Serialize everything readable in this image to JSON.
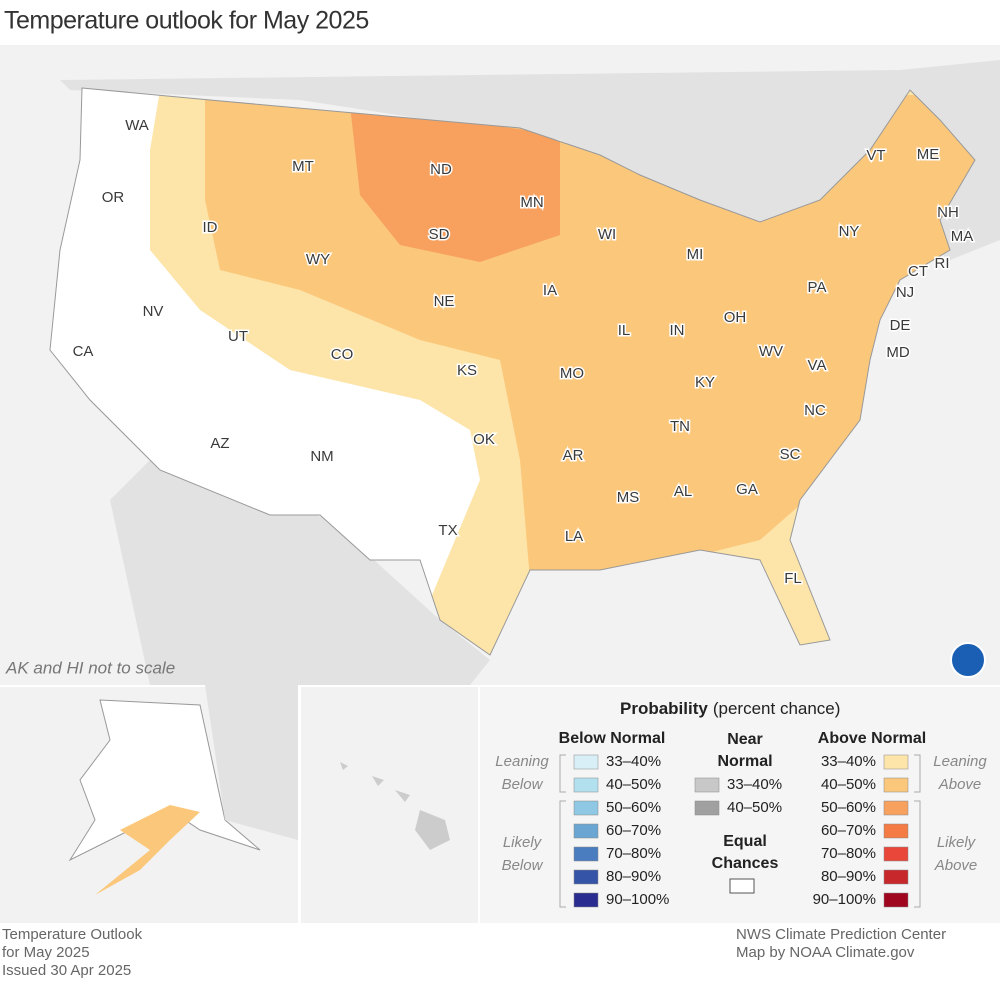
{
  "title": "Temperature outlook for May 2025",
  "map": {
    "note": "AK and HI not to scale",
    "states": [
      "WA",
      "OR",
      "CA",
      "NV",
      "ID",
      "MT",
      "WY",
      "UT",
      "CO",
      "AZ",
      "NM",
      "ND",
      "SD",
      "NE",
      "KS",
      "OK",
      "TX",
      "MN",
      "IA",
      "MO",
      "AR",
      "LA",
      "WI",
      "IL",
      "MI",
      "IN",
      "OH",
      "KY",
      "TN",
      "MS",
      "AL",
      "GA",
      "FL",
      "SC",
      "NC",
      "VA",
      "WV",
      "PA",
      "NY",
      "VT",
      "ME",
      "NH",
      "MA",
      "RI",
      "CT",
      "NJ",
      "DE",
      "MD"
    ],
    "insets": [
      "AK",
      "HI"
    ]
  },
  "legend": {
    "title": "Probability",
    "subtitle": "(percent chance)",
    "below": {
      "header": "Below Normal",
      "leaning": [
        "Leaning",
        "Below"
      ],
      "likely": [
        "Likely",
        "Below"
      ],
      "items": [
        {
          "label": "33–40%",
          "color": "#d9eff8"
        },
        {
          "label": "40–50%",
          "color": "#b3e0ef"
        },
        {
          "label": "50–60%",
          "color": "#8ec8e5"
        },
        {
          "label": "60–70%",
          "color": "#6ba6d3"
        },
        {
          "label": "70–80%",
          "color": "#4a7dc0"
        },
        {
          "label": "80–90%",
          "color": "#3554a7"
        },
        {
          "label": "90–100%",
          "color": "#2b2c8f"
        }
      ]
    },
    "near": {
      "header": [
        "Near",
        "Normal"
      ],
      "items": [
        {
          "label": "33–40%",
          "color": "#c8c8c8"
        },
        {
          "label": "40–50%",
          "color": "#a0a0a0"
        }
      ],
      "equal": [
        "Equal",
        "Chances"
      ],
      "equal_color": "#ffffff"
    },
    "above": {
      "header": "Above Normal",
      "leaning": [
        "Leaning",
        "Above"
      ],
      "likely": [
        "Likely",
        "Above"
      ],
      "items": [
        {
          "label": "33–40%",
          "color": "#fde5aa"
        },
        {
          "label": "40–50%",
          "color": "#fbc77b"
        },
        {
          "label": "50–60%",
          "color": "#f8a15e"
        },
        {
          "label": "60–70%",
          "color": "#f57b45"
        },
        {
          "label": "70–80%",
          "color": "#e8473a"
        },
        {
          "label": "80–90%",
          "color": "#c7282b"
        },
        {
          "label": "90–100%",
          "color": "#a0061e"
        }
      ]
    }
  },
  "footer": {
    "left": [
      "Temperature Outlook",
      "for May 2025",
      "Issued 30 Apr 2025"
    ],
    "right": [
      "NWS Climate Prediction Center",
      "Map by NOAA Climate.gov"
    ]
  }
}
